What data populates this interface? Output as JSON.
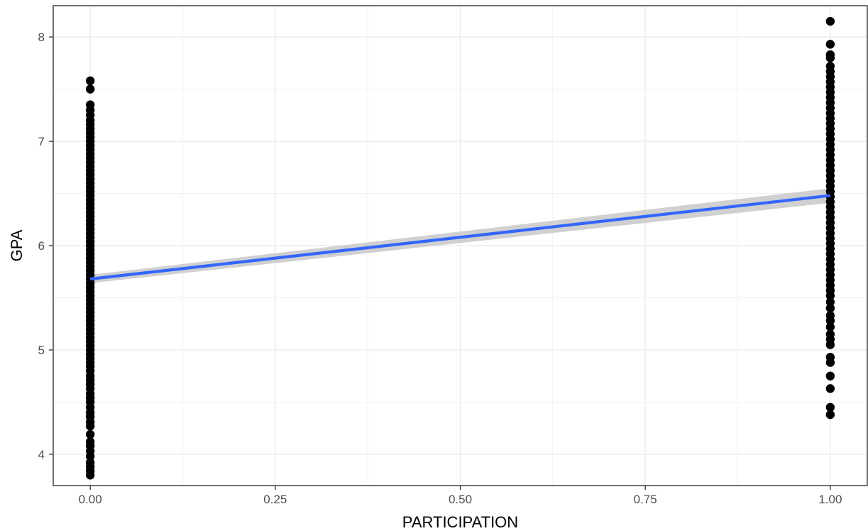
{
  "chart_data": {
    "type": "scatter",
    "title": "",
    "xlabel": "PARTICIPATION",
    "ylabel": "GPA",
    "xlim": [
      -0.05,
      1.05
    ],
    "ylim": [
      3.7,
      8.3
    ],
    "x_ticks": [
      0.0,
      0.25,
      0.5,
      0.75,
      1.0
    ],
    "x_tick_labels": [
      "0.00",
      "0.25",
      "0.50",
      "0.75",
      "1.00"
    ],
    "y_ticks": [
      4,
      5,
      6,
      7,
      8
    ],
    "y_tick_labels": [
      "4",
      "5",
      "6",
      "7",
      "8"
    ],
    "grid": true,
    "legend": "none",
    "colors": {
      "points": "#000000",
      "fit_line": "#3366ff",
      "ci_band": "#c8c8c8",
      "grid": "#ebebeb",
      "panel_border": "#333333"
    },
    "series": [
      {
        "x": 0,
        "y": [
          3.8,
          3.84,
          3.88,
          3.92,
          3.98,
          4.03,
          4.08,
          4.12,
          4.19,
          4.27,
          4.31,
          4.36,
          4.4,
          4.45,
          4.5,
          4.54,
          4.58,
          4.63,
          4.67,
          4.71,
          4.75,
          4.8,
          4.84,
          4.88,
          4.92,
          4.96,
          5.0,
          5.04,
          5.08,
          5.12,
          5.16,
          5.2,
          5.24,
          5.28,
          5.32,
          5.36,
          5.4,
          5.44,
          5.48,
          5.52,
          5.56,
          5.6,
          5.64,
          5.68,
          5.72,
          5.76,
          5.8,
          5.84,
          5.88,
          5.92,
          5.96,
          6.0,
          6.04,
          6.08,
          6.12,
          6.16,
          6.2,
          6.24,
          6.28,
          6.32,
          6.36,
          6.4,
          6.44,
          6.48,
          6.52,
          6.56,
          6.6,
          6.64,
          6.68,
          6.72,
          6.76,
          6.8,
          6.84,
          6.88,
          6.92,
          6.96,
          7.0,
          7.04,
          7.08,
          7.12,
          7.16,
          7.2,
          7.25,
          7.3,
          7.35,
          7.5,
          7.58
        ]
      },
      {
        "x": 1,
        "y": [
          4.38,
          4.45,
          4.63,
          4.75,
          4.88,
          4.93,
          5.05,
          5.1,
          5.15,
          5.22,
          5.28,
          5.33,
          5.4,
          5.46,
          5.52,
          5.57,
          5.62,
          5.67,
          5.72,
          5.77,
          5.82,
          5.87,
          5.92,
          5.97,
          6.02,
          6.07,
          6.12,
          6.17,
          6.22,
          6.27,
          6.32,
          6.37,
          6.42,
          6.47,
          6.52,
          6.57,
          6.62,
          6.67,
          6.72,
          6.77,
          6.82,
          6.87,
          6.92,
          6.97,
          7.02,
          7.07,
          7.12,
          7.17,
          7.22,
          7.27,
          7.32,
          7.37,
          7.42,
          7.47,
          7.52,
          7.57,
          7.62,
          7.67,
          7.72,
          7.8,
          7.83,
          7.93,
          8.15
        ]
      }
    ],
    "fit_line": {
      "method": "lm",
      "x": [
        0,
        1
      ],
      "y": [
        5.68,
        6.48
      ],
      "ci_halfwidth": [
        0.04,
        0.07
      ]
    }
  }
}
